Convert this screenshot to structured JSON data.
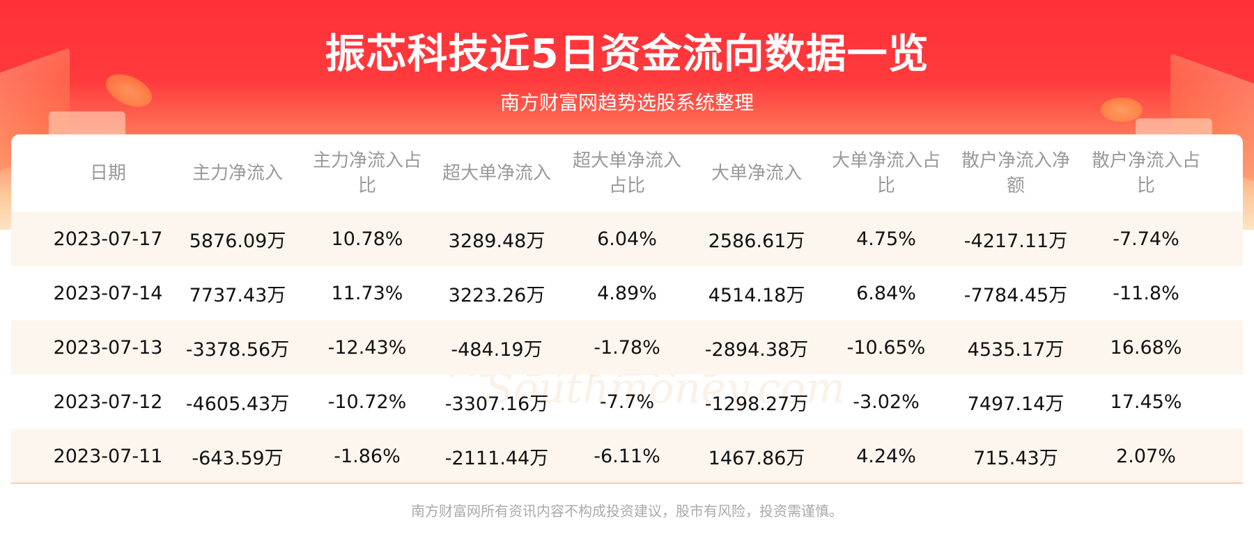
{
  "header": {
    "title": "振芯科技近5日资金流向数据一览",
    "subtitle": "南方财富网趋势选股系统整理"
  },
  "table": {
    "columns": [
      "日期",
      "主力净流入",
      "主力净流入占比",
      "超大单净流入",
      "超大单净流入占比",
      "大单净流入",
      "大单净流入占比",
      "散户净流入净额",
      "散户净流入占比"
    ],
    "rows": [
      [
        "2023-07-17",
        "5876.09万",
        "10.78%",
        "3289.48万",
        "6.04%",
        "2586.61万",
        "4.75%",
        "-4217.11万",
        "-7.74%"
      ],
      [
        "2023-07-14",
        "7737.43万",
        "11.73%",
        "3223.26万",
        "4.89%",
        "4514.18万",
        "6.84%",
        "-7784.45万",
        "-11.8%"
      ],
      [
        "2023-07-13",
        "-3378.56万",
        "-12.43%",
        "-484.19万",
        "-1.78%",
        "-2894.38万",
        "-10.65%",
        "4535.17万",
        "16.68%"
      ],
      [
        "2023-07-12",
        "-4605.43万",
        "-10.72%",
        "-3307.16万",
        "-7.7%",
        "-1298.27万",
        "-3.02%",
        "7497.14万",
        "17.45%"
      ],
      [
        "2023-07-11",
        "-643.59万",
        "-1.86%",
        "-2111.44万",
        "-6.11%",
        "1467.86万",
        "4.24%",
        "715.43万",
        "2.07%"
      ]
    ]
  },
  "watermark": {
    "cn": "南方财富网",
    "en": "Southmoney.com"
  },
  "footer": "南方财富网所有资讯内容不构成投资建议，股市有风险，投资需谨慎。",
  "colors": {
    "banner": "#ff3038",
    "row_alt": "#fdf6ef",
    "header_text": "#999999"
  }
}
